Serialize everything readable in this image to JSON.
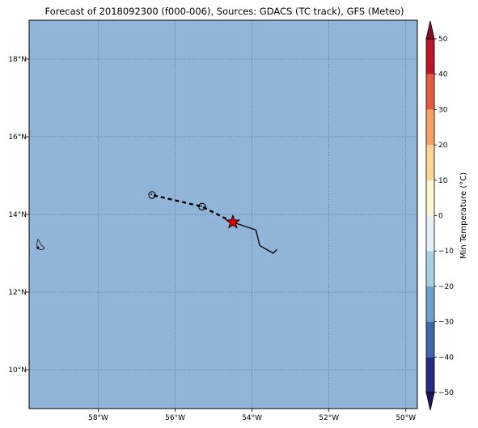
{
  "title": "Forecast of 2018092300 (f000-006), Sources: GDACS (TC track), GFS (Meteo)",
  "map": {
    "ocean_color": "#91b5d9",
    "lon_range": [
      -59.8,
      -49.7
    ],
    "lat_range": [
      9.0,
      19.0
    ],
    "lon_ticks": [
      {
        "value": -58,
        "label": "58°W"
      },
      {
        "value": -56,
        "label": "56°W"
      },
      {
        "value": -54,
        "label": "54°W"
      },
      {
        "value": -52,
        "label": "52°W"
      },
      {
        "value": -50,
        "label": "50°W"
      }
    ],
    "lat_ticks": [
      {
        "value": 10,
        "label": "10°N"
      },
      {
        "value": 12,
        "label": "12°N"
      },
      {
        "value": 14,
        "label": "14°N"
      },
      {
        "value": 16,
        "label": "16°N"
      },
      {
        "value": 18,
        "label": "18°N"
      }
    ],
    "past_track": [
      [
        -54.5,
        13.8
      ],
      [
        -53.9,
        13.6
      ],
      [
        -53.8,
        13.2
      ],
      [
        -53.45,
        13.0
      ],
      [
        -53.35,
        13.1
      ]
    ],
    "forecast_track": [
      [
        -54.5,
        13.8
      ],
      [
        -55.3,
        14.2
      ],
      [
        -56.6,
        14.5
      ]
    ],
    "forecast_points": [
      [
        -55.3,
        14.2
      ],
      [
        -56.6,
        14.5
      ]
    ],
    "current_position": [
      -54.5,
      13.8
    ],
    "star_color": "#e00000"
  },
  "colorbar": {
    "label": "Min Temperature (°C)",
    "ticks": [
      {
        "value": 50,
        "label": "50"
      },
      {
        "value": 40,
        "label": "40"
      },
      {
        "value": 30,
        "label": "30"
      },
      {
        "value": 20,
        "label": "20"
      },
      {
        "value": 10,
        "label": "10"
      },
      {
        "value": 0,
        "label": "0"
      },
      {
        "value": -10,
        "label": "−10"
      },
      {
        "value": -20,
        "label": "−20"
      },
      {
        "value": -30,
        "label": "−30"
      },
      {
        "value": -40,
        "label": "−40"
      },
      {
        "value": -50,
        "label": "−50"
      }
    ],
    "colors": [
      "#262c85",
      "#3f68ac",
      "#6ba2cb",
      "#a7d0e4",
      "#e4f2f6",
      "#fef7d2",
      "#fdd694",
      "#fba163",
      "#e45a3f",
      "#bb1628"
    ],
    "over_color": "#8a0a28",
    "under_color": "#1f1664"
  }
}
